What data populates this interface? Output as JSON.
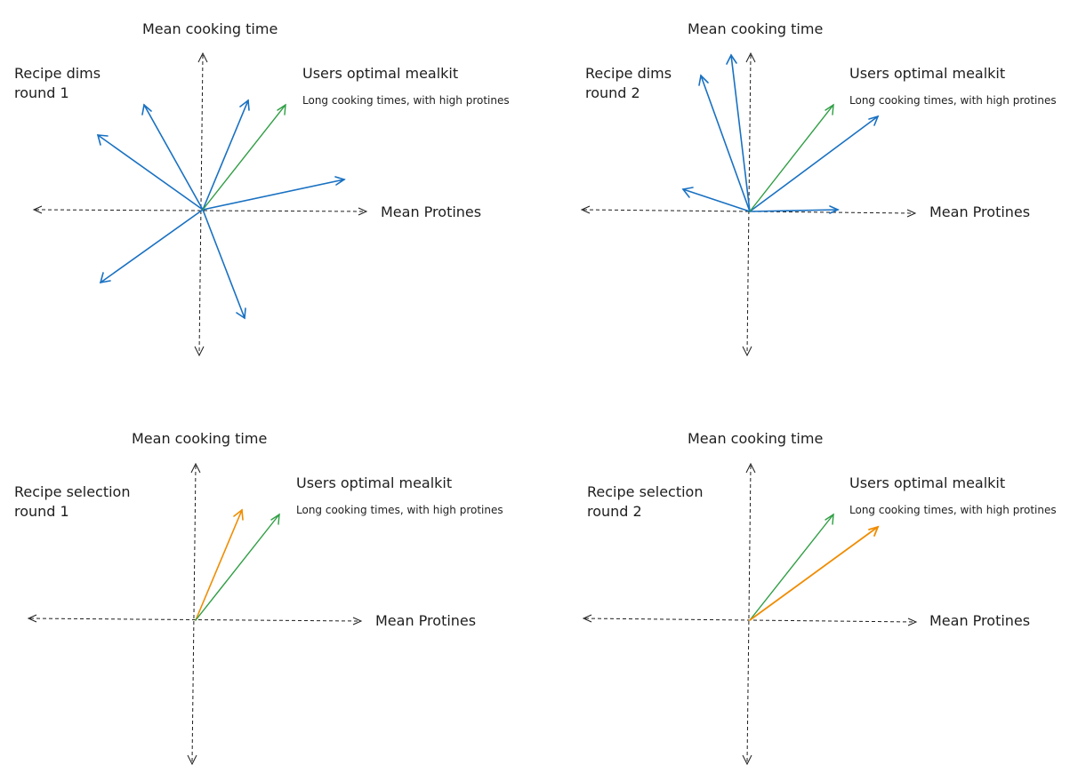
{
  "colors": {
    "axis": "#1e1e1e",
    "recipe": "#1971c2",
    "optimal": "#2f9e44",
    "selection": "#f08c00",
    "text": "#1e1e1e"
  },
  "panels": [
    {
      "id": "recipe-dims-round-1",
      "title": "Recipe dims\nround 1",
      "y_axis_label": "Mean cooking time",
      "x_axis_label": "Mean Protines",
      "optimal_title": "Users optimal mealkit",
      "optimal_desc": "Long cooking times, with high protines"
    },
    {
      "id": "recipe-dims-round-2",
      "title": "Recipe dims\nround 2",
      "y_axis_label": "Mean cooking time",
      "x_axis_label": "Mean Protines",
      "optimal_title": "Users optimal mealkit",
      "optimal_desc": "Long cooking times, with high protines"
    },
    {
      "id": "recipe-selection-round-1",
      "title": "Recipe selection\nround 1",
      "y_axis_label": "Mean cooking time",
      "x_axis_label": "Mean Protines",
      "optimal_title": "Users optimal mealkit",
      "optimal_desc": "Long cooking times, with high protines"
    },
    {
      "id": "recipe-selection-round-2",
      "title": "Recipe selection\nround 2",
      "y_axis_label": "Mean cooking time",
      "x_axis_label": "Mean Protines",
      "optimal_title": "Users optimal mealkit",
      "optimal_desc": "Long cooking times, with high protines"
    }
  ]
}
